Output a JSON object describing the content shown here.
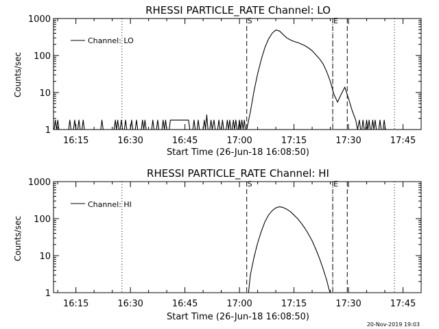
{
  "chart_data": [
    {
      "type": "line",
      "title": "RHESSI PARTICLE_RATE Channel: LO",
      "xlabel": "Start Time (26-Jun-18 16:08:50)",
      "ylabel": "Counts/sec",
      "yscale": "log",
      "xlim": [
        "16:08:50",
        "17:50:00"
      ],
      "ylim": [
        1,
        1000
      ],
      "x_ticks": [
        "16:15",
        "16:30",
        "16:45",
        "17:00",
        "17:15",
        "17:30",
        "17:45"
      ],
      "y_ticks": [
        "1",
        "10",
        "100",
        "1000"
      ],
      "legend": {
        "position": "top-left",
        "entries": [
          "Channel: LO"
        ]
      },
      "markers": [
        {
          "time": "16:27:40",
          "style": "dotted",
          "label": ""
        },
        {
          "time": "17:02:00",
          "style": "dashed",
          "label": "S"
        },
        {
          "time": "17:25:40",
          "style": "dotted",
          "label": ""
        },
        {
          "time": "17:25:40",
          "style": "dashed",
          "label": "E"
        },
        {
          "time": "17:29:40",
          "style": "dashed",
          "label": ""
        },
        {
          "time": "17:42:40",
          "style": "dotted",
          "label": ""
        }
      ],
      "series": [
        {
          "name": "Channel: LO",
          "points": [
            [
              "16:09:00",
              1
            ],
            [
              "16:09:20",
              1.8
            ],
            [
              "16:09:40",
              1
            ],
            [
              "16:10:00",
              1.8
            ],
            [
              "16:10:20",
              1
            ],
            [
              "16:13:00",
              1
            ],
            [
              "16:13:20",
              1.8
            ],
            [
              "16:13:40",
              1
            ],
            [
              "16:14:20",
              1
            ],
            [
              "16:14:40",
              1.8
            ],
            [
              "16:15:00",
              1
            ],
            [
              "16:15:30",
              1
            ],
            [
              "16:15:50",
              1.8
            ],
            [
              "16:16:10",
              1
            ],
            [
              "16:16:40",
              1
            ],
            [
              "16:17:00",
              1.8
            ],
            [
              "16:17:20",
              1
            ],
            [
              "16:21:50",
              1
            ],
            [
              "16:22:10",
              1.8
            ],
            [
              "16:22:30",
              1
            ],
            [
              "16:25:30",
              1
            ],
            [
              "16:25:50",
              1.8
            ],
            [
              "16:26:10",
              1
            ],
            [
              "16:26:30",
              1.8
            ],
            [
              "16:26:50",
              1
            ],
            [
              "16:27:10",
              1
            ],
            [
              "16:27:30",
              1.8
            ],
            [
              "16:27:50",
              1
            ],
            [
              "16:28:20",
              1
            ],
            [
              "16:28:40",
              1.8
            ],
            [
              "16:29:00",
              1
            ],
            [
              "16:30:00",
              1
            ],
            [
              "16:30:20",
              1.8
            ],
            [
              "16:30:40",
              1
            ],
            [
              "16:31:20",
              1
            ],
            [
              "16:31:40",
              1.8
            ],
            [
              "16:32:00",
              1
            ],
            [
              "16:33:00",
              1
            ],
            [
              "16:33:20",
              1.8
            ],
            [
              "16:33:40",
              1
            ],
            [
              "16:34:00",
              1.8
            ],
            [
              "16:34:20",
              1
            ],
            [
              "16:35:50",
              1
            ],
            [
              "16:36:10",
              1.8
            ],
            [
              "16:36:30",
              1
            ],
            [
              "16:37:10",
              1
            ],
            [
              "16:37:30",
              1.8
            ],
            [
              "16:37:50",
              1
            ],
            [
              "16:38:40",
              1
            ],
            [
              "16:39:00",
              1.8
            ],
            [
              "16:39:20",
              1
            ],
            [
              "16:39:40",
              1.8
            ],
            [
              "16:40:00",
              1
            ],
            [
              "16:40:40",
              1
            ],
            [
              "16:41:00",
              1.8
            ],
            [
              "16:46:00",
              1.8
            ],
            [
              "16:46:20",
              1
            ],
            [
              "16:47:10",
              1
            ],
            [
              "16:47:30",
              1.8
            ],
            [
              "16:47:50",
              1
            ],
            [
              "16:48:20",
              1
            ],
            [
              "16:48:40",
              1.8
            ],
            [
              "16:49:00",
              1
            ],
            [
              "16:50:00",
              1
            ],
            [
              "16:50:20",
              1.8
            ],
            [
              "16:50:40",
              1
            ],
            [
              "16:51:00",
              2.5
            ],
            [
              "16:51:20",
              1
            ],
            [
              "16:51:50",
              1
            ],
            [
              "16:52:10",
              1.8
            ],
            [
              "16:52:30",
              1
            ],
            [
              "16:53:00",
              1.8
            ],
            [
              "16:53:20",
              1
            ],
            [
              "16:54:00",
              1
            ],
            [
              "16:54:20",
              1.8
            ],
            [
              "16:54:40",
              1
            ],
            [
              "16:55:00",
              1
            ],
            [
              "16:55:20",
              1.8
            ],
            [
              "16:55:40",
              1
            ],
            [
              "16:56:20",
              1
            ],
            [
              "16:56:40",
              1.8
            ],
            [
              "16:57:00",
              1
            ],
            [
              "16:57:20",
              1.8
            ],
            [
              "16:57:40",
              1
            ],
            [
              "16:58:00",
              1
            ],
            [
              "16:58:20",
              1.8
            ],
            [
              "16:58:40",
              1
            ],
            [
              "16:59:00",
              1.8
            ],
            [
              "16:59:20",
              1
            ],
            [
              "16:59:40",
              1
            ],
            [
              "17:00:00",
              1.8
            ],
            [
              "17:00:20",
              1
            ],
            [
              "17:00:40",
              1.8
            ],
            [
              "17:01:00",
              1
            ],
            [
              "17:01:20",
              1.8
            ],
            [
              "17:01:40",
              1
            ],
            [
              "17:02:00",
              1
            ],
            [
              "17:03:00",
              3
            ],
            [
              "17:04:00",
              11
            ],
            [
              "17:05:00",
              32
            ],
            [
              "17:06:00",
              78
            ],
            [
              "17:07:00",
              165
            ],
            [
              "17:08:00",
              280
            ],
            [
              "17:09:00",
              400
            ],
            [
              "17:10:00",
              490
            ],
            [
              "17:11:00",
              460
            ],
            [
              "17:12:00",
              370
            ],
            [
              "17:13:00",
              300
            ],
            [
              "17:14:00",
              265
            ],
            [
              "17:15:00",
              240
            ],
            [
              "17:16:00",
              225
            ],
            [
              "17:17:00",
              205
            ],
            [
              "17:18:00",
              185
            ],
            [
              "17:19:00",
              160
            ],
            [
              "17:20:00",
              135
            ],
            [
              "17:21:00",
              105
            ],
            [
              "17:22:00",
              82
            ],
            [
              "17:23:00",
              60
            ],
            [
              "17:24:00",
              37
            ],
            [
              "17:25:00",
              20
            ],
            [
              "17:26:00",
              9
            ],
            [
              "17:27:00",
              5.5
            ],
            [
              "17:28:00",
              9
            ],
            [
              "17:29:00",
              14
            ],
            [
              "17:30:00",
              7
            ],
            [
              "17:31:00",
              3.3
            ],
            [
              "17:32:00",
              1.8
            ],
            [
              "17:32:30",
              1
            ],
            [
              "17:33:00",
              1.8
            ],
            [
              "17:33:20",
              1
            ],
            [
              "17:33:40",
              1
            ],
            [
              "17:34:00",
              1.8
            ],
            [
              "17:34:20",
              1
            ],
            [
              "17:34:40",
              1
            ],
            [
              "17:35:00",
              1.8
            ],
            [
              "17:35:20",
              1
            ],
            [
              "17:35:40",
              1.8
            ],
            [
              "17:36:00",
              1
            ],
            [
              "17:36:20",
              1
            ],
            [
              "17:36:40",
              1.8
            ],
            [
              "17:37:00",
              1
            ],
            [
              "17:37:20",
              1.8
            ],
            [
              "17:37:40",
              1
            ],
            [
              "17:38:20",
              1
            ],
            [
              "17:38:40",
              1.8
            ],
            [
              "17:39:00",
              1
            ],
            [
              "17:39:30",
              1
            ],
            [
              "17:39:50",
              1.8
            ],
            [
              "17:40:10",
              1
            ]
          ]
        }
      ]
    },
    {
      "type": "line",
      "title": "RHESSI PARTICLE_RATE Channel: HI",
      "xlabel": "Start Time (26-Jun-18 16:08:50)",
      "ylabel": "Counts/sec",
      "yscale": "log",
      "xlim": [
        "16:08:50",
        "17:50:00"
      ],
      "ylim": [
        1,
        1000
      ],
      "x_ticks": [
        "16:15",
        "16:30",
        "16:45",
        "17:00",
        "17:15",
        "17:30",
        "17:45"
      ],
      "y_ticks": [
        "1",
        "10",
        "100",
        "1000"
      ],
      "legend": {
        "position": "top-left",
        "entries": [
          "Channel: HI"
        ]
      },
      "markers": [
        {
          "time": "16:27:40",
          "style": "dotted",
          "label": ""
        },
        {
          "time": "17:02:00",
          "style": "dashed",
          "label": "S"
        },
        {
          "time": "17:25:40",
          "style": "dotted",
          "label": ""
        },
        {
          "time": "17:25:40",
          "style": "dashed",
          "label": "E"
        },
        {
          "time": "17:29:40",
          "style": "dashed",
          "label": ""
        },
        {
          "time": "17:42:40",
          "style": "dotted",
          "label": ""
        }
      ],
      "series": [
        {
          "name": "Channel: HI",
          "points": [
            [
              "17:02:30",
              1
            ],
            [
              "17:03:00",
              3
            ],
            [
              "17:04:00",
              9
            ],
            [
              "17:05:00",
              22
            ],
            [
              "17:06:00",
              45
            ],
            [
              "17:07:00",
              82
            ],
            [
              "17:08:00",
              125
            ],
            [
              "17:09:00",
              165
            ],
            [
              "17:10:00",
              195
            ],
            [
              "17:11:00",
              210
            ],
            [
              "17:12:00",
              200
            ],
            [
              "17:13:00",
              180
            ],
            [
              "17:14:00",
              155
            ],
            [
              "17:15:00",
              125
            ],
            [
              "17:16:00",
              100
            ],
            [
              "17:17:00",
              75
            ],
            [
              "17:18:00",
              55
            ],
            [
              "17:19:00",
              38
            ],
            [
              "17:20:00",
              25
            ],
            [
              "17:21:00",
              15
            ],
            [
              "17:22:00",
              8.5
            ],
            [
              "17:23:00",
              4.5
            ],
            [
              "17:24:00",
              2.2
            ],
            [
              "17:24:40",
              1.2
            ],
            [
              "17:25:00",
              1
            ]
          ]
        }
      ]
    }
  ],
  "footer": {
    "timestamp": "20-Nov-2019 19:03"
  }
}
